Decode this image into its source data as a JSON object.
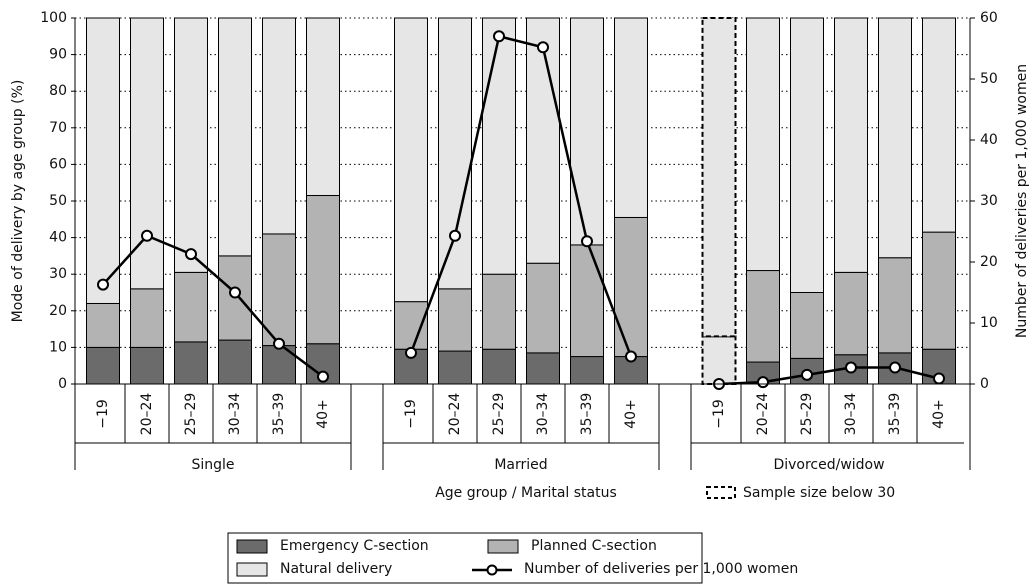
{
  "chart_data": {
    "type": "bar",
    "stacked": true,
    "y_label": "Mode of delivery by age group (%)",
    "y2_label": "Number of deliveries per 1,000 women",
    "x_label": "Age group / Marital status",
    "groups": [
      {
        "name": "Single",
        "categories": [
          "−19",
          "20–24",
          "25–29",
          "30–34",
          "35–39",
          "40+"
        ]
      },
      {
        "name": "Married",
        "categories": [
          "−19",
          "20–24",
          "25–29",
          "30–34",
          "35–39",
          "40+"
        ]
      },
      {
        "name": "Divorced/widow",
        "categories": [
          "−19",
          "20–24",
          "25–29",
          "30–34",
          "35–39",
          "40+"
        ]
      }
    ],
    "series": [
      {
        "name": "Emergency C-section",
        "color": "#6b6b6b",
        "values": [
          [
            10,
            10,
            11.5,
            12,
            10.5,
            11
          ],
          [
            9.5,
            9,
            9.5,
            8.5,
            7.5,
            7.5
          ],
          [
            0,
            6,
            7,
            8,
            8.5,
            9.5
          ]
        ]
      },
      {
        "name": "Planned C-section",
        "color": "#b3b3b3",
        "values": [
          [
            12,
            16,
            19,
            23,
            30.5,
            40.5
          ],
          [
            13,
            17,
            20.5,
            24.5,
            30.5,
            38
          ],
          [
            13,
            25,
            18,
            22.5,
            26,
            32
          ]
        ]
      },
      {
        "name": "Natural delivery",
        "color": "#e6e6e6",
        "values": [
          [
            78,
            74,
            69.5,
            65,
            59,
            48.5
          ],
          [
            77.5,
            74,
            70,
            67,
            62,
            54.5
          ],
          [
            87,
            69,
            75,
            69.5,
            65.5,
            58.5
          ]
        ]
      },
      {
        "name": "Number of deliveries per 1,000 women",
        "type": "line",
        "axis": "y2",
        "color": "#000000",
        "values": [
          [
            16.3,
            24.3,
            21.3,
            15,
            6.6,
            1.2
          ],
          [
            5.1,
            24.3,
            57,
            55.2,
            23.4,
            4.5
          ],
          [
            0,
            0.3,
            1.5,
            2.7,
            2.7,
            0.9
          ]
        ]
      }
    ],
    "ylim": [
      0,
      100
    ],
    "yticks": [
      0,
      10,
      20,
      30,
      40,
      50,
      60,
      70,
      80,
      90,
      100
    ],
    "y2lim": [
      0,
      60
    ],
    "y2ticks": [
      0,
      10,
      20,
      30,
      40,
      50,
      60
    ],
    "grid": true,
    "note": "Sample size below 30",
    "note_bars": [
      {
        "group": 2,
        "category": 0
      }
    ]
  }
}
